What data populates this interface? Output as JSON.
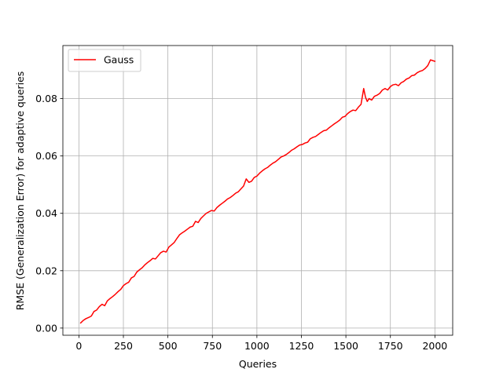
{
  "chart_data": {
    "type": "line",
    "title": "",
    "xlabel": "Queries",
    "ylabel": "RMSE (Generalization Error) for adaptive queries",
    "xlim": [
      -90,
      2100
    ],
    "ylim": [
      -0.0025,
      0.0985
    ],
    "xticks": [
      0,
      250,
      500,
      750,
      1000,
      1250,
      1500,
      1750,
      2000
    ],
    "xtick_labels": [
      "0",
      "250",
      "500",
      "750",
      "1000",
      "1250",
      "1500",
      "1750",
      "2000"
    ],
    "yticks": [
      0.0,
      0.02,
      0.04,
      0.06,
      0.08
    ],
    "ytick_labels": [
      "0.00",
      "0.02",
      "0.04",
      "0.06",
      "0.08"
    ],
    "grid": true,
    "legend_position": "top-left",
    "series": [
      {
        "name": "Gauss",
        "color": "#ff0000",
        "x": [
          10,
          25,
          40,
          55,
          70,
          85,
          100,
          115,
          130,
          145,
          160,
          175,
          190,
          205,
          220,
          235,
          250,
          265,
          280,
          295,
          310,
          325,
          340,
          355,
          370,
          385,
          400,
          415,
          430,
          445,
          460,
          475,
          490,
          505,
          520,
          535,
          550,
          565,
          580,
          595,
          610,
          625,
          640,
          655,
          670,
          685,
          700,
          715,
          730,
          745,
          760,
          775,
          790,
          805,
          820,
          835,
          850,
          865,
          880,
          895,
          910,
          925,
          940,
          955,
          970,
          985,
          1000,
          1015,
          1030,
          1045,
          1060,
          1075,
          1090,
          1105,
          1120,
          1135,
          1150,
          1165,
          1180,
          1195,
          1210,
          1225,
          1240,
          1255,
          1270,
          1285,
          1300,
          1315,
          1330,
          1345,
          1360,
          1375,
          1390,
          1405,
          1420,
          1435,
          1450,
          1465,
          1480,
          1495,
          1510,
          1525,
          1540,
          1555,
          1570,
          1585,
          1600,
          1610,
          1620,
          1630,
          1645,
          1660,
          1675,
          1690,
          1705,
          1720,
          1735,
          1750,
          1765,
          1780,
          1795,
          1810,
          1825,
          1840,
          1855,
          1870,
          1885,
          1900,
          1915,
          1930,
          1945,
          1960,
          1975,
          1990,
          2000
        ],
        "y": [
          0.0018,
          0.0027,
          0.0033,
          0.0037,
          0.0042,
          0.0058,
          0.0063,
          0.0075,
          0.0083,
          0.0078,
          0.0095,
          0.0103,
          0.011,
          0.0118,
          0.0127,
          0.0135,
          0.0148,
          0.0155,
          0.016,
          0.0175,
          0.018,
          0.0195,
          0.0203,
          0.021,
          0.022,
          0.0228,
          0.0235,
          0.0243,
          0.0241,
          0.0252,
          0.0263,
          0.0268,
          0.0265,
          0.0282,
          0.029,
          0.0298,
          0.0312,
          0.0325,
          0.0332,
          0.0338,
          0.0345,
          0.0352,
          0.0355,
          0.0372,
          0.0368,
          0.0382,
          0.0391,
          0.04,
          0.0405,
          0.041,
          0.0408,
          0.042,
          0.0428,
          0.0435,
          0.0442,
          0.045,
          0.0455,
          0.0462,
          0.047,
          0.0475,
          0.0485,
          0.0495,
          0.052,
          0.0508,
          0.0512,
          0.0525,
          0.053,
          0.054,
          0.0548,
          0.0555,
          0.056,
          0.0568,
          0.0575,
          0.058,
          0.0588,
          0.0596,
          0.06,
          0.0605,
          0.0612,
          0.062,
          0.0625,
          0.0632,
          0.0638,
          0.064,
          0.0645,
          0.0648,
          0.066,
          0.0665,
          0.0668,
          0.0675,
          0.0682,
          0.0688,
          0.069,
          0.0698,
          0.0705,
          0.0712,
          0.0718,
          0.0725,
          0.0735,
          0.0738,
          0.0748,
          0.0755,
          0.076,
          0.0758,
          0.077,
          0.078,
          0.0835,
          0.0805,
          0.079,
          0.08,
          0.0795,
          0.0808,
          0.0812,
          0.0818,
          0.083,
          0.0835,
          0.083,
          0.0842,
          0.0848,
          0.085,
          0.0845,
          0.0855,
          0.086,
          0.0868,
          0.0872,
          0.088,
          0.0882,
          0.089,
          0.0895,
          0.0898,
          0.0905,
          0.0915,
          0.0935,
          0.0932,
          0.093
        ]
      }
    ]
  }
}
